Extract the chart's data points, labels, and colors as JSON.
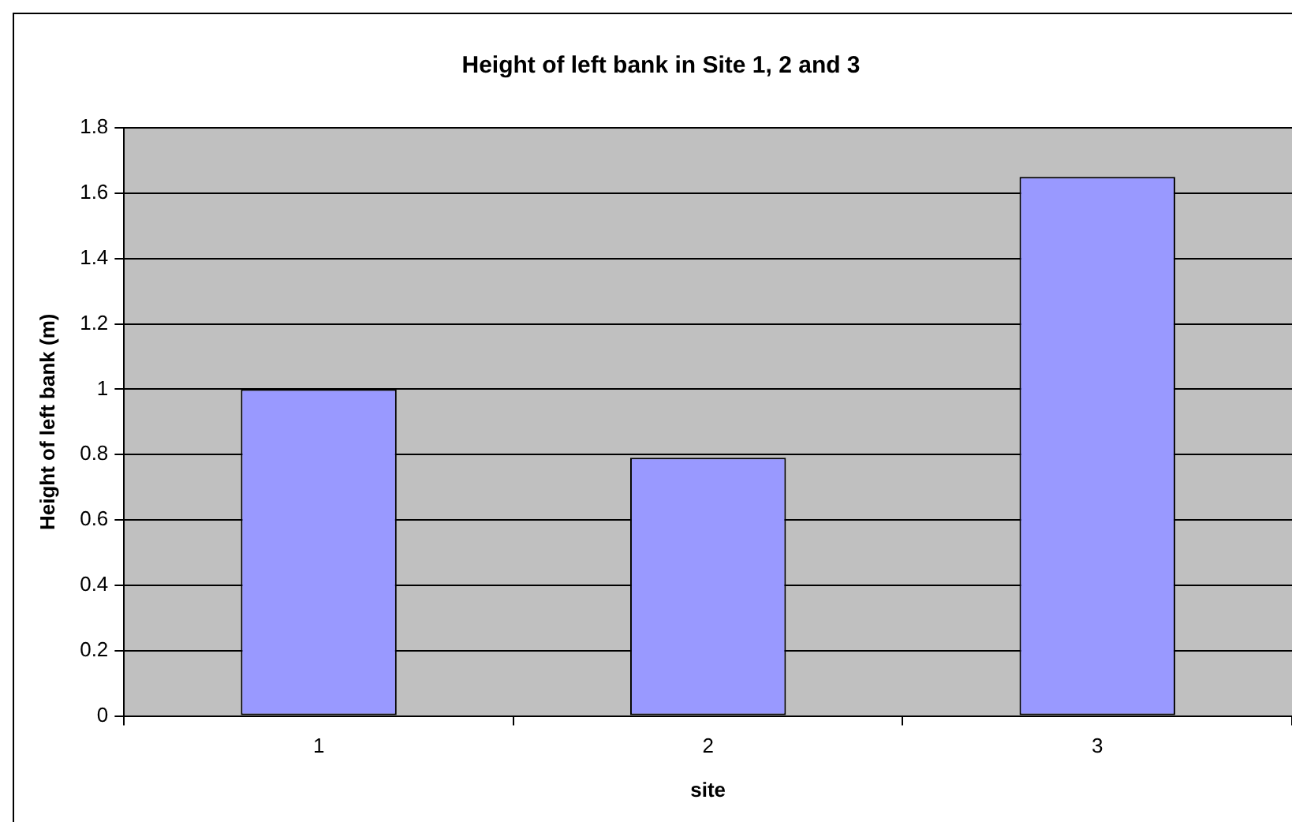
{
  "chart_data": {
    "type": "bar",
    "title": "Height of left bank in Site 1, 2 and 3",
    "xlabel": "site",
    "ylabel": "Height of left bank (m)",
    "categories": [
      "1",
      "2",
      "3"
    ],
    "values": [
      1.0,
      0.79,
      1.65
    ],
    "color": "#9999ff",
    "ylim": [
      0,
      1.8
    ],
    "yticks": [
      0,
      0.2,
      0.4,
      0.6,
      0.8,
      1,
      1.2,
      1.4,
      1.6,
      1.8
    ],
    "grid": "y",
    "legend": false
  }
}
